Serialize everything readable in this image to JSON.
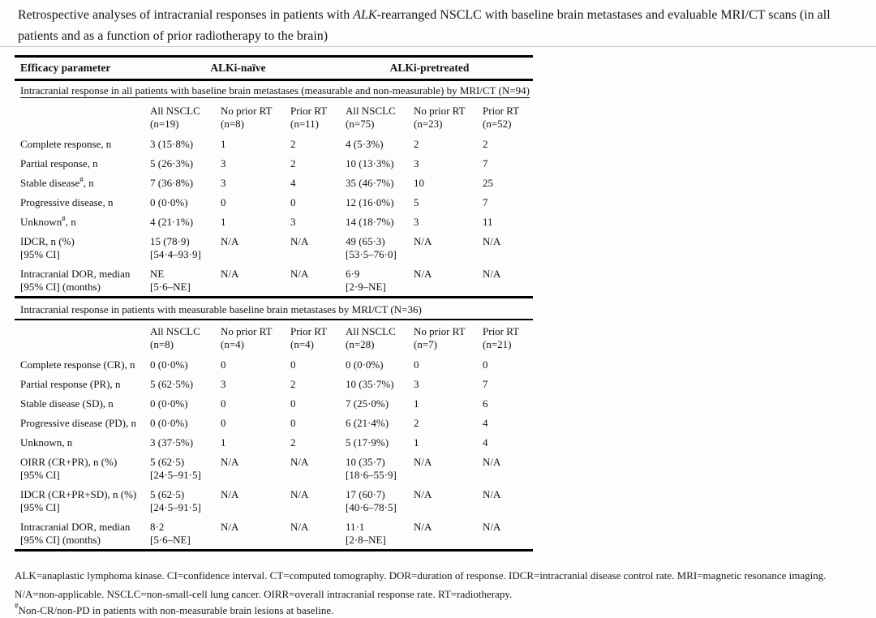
{
  "title": {
    "text_before_italic": "Retrospective analyses of intracranial responses in patients with ",
    "italic_term": "ALK",
    "text_after_italic": "-rearranged NSCLC with baseline brain metastases and evaluable MRI/CT scans (in all patients and as a function of prior radiotherapy to the brain)"
  },
  "table": {
    "header": {
      "col1": "Efficacy parameter",
      "group1": "ALKi-naïve",
      "group2": "ALKi-pretreated"
    },
    "sections": [
      {
        "heading": "Intracranial response in all patients with baseline brain metastases (measurable and non-measurable) by MRI/CT (N=94)",
        "subcolumns": [
          "All NSCLC\n(n=19)",
          "No prior RT\n(n=8)",
          "Prior RT\n(n=11)",
          "All NSCLC\n(n=75)",
          "No prior RT\n(n=23)",
          "Prior RT\n(n=52)"
        ],
        "rows": [
          {
            "label": "Complete response, n",
            "values": [
              "3 (15·8%)",
              "1",
              "2",
              "4 (5·3%)",
              "2",
              "2"
            ]
          },
          {
            "label": "Partial response, n",
            "values": [
              "5 (26·3%)",
              "3",
              "2",
              "10 (13·3%)",
              "3",
              "7"
            ]
          },
          {
            "label": "Stable disease",
            "sup": "#",
            "label_after": ", n",
            "values": [
              "7 (36·8%)",
              "3",
              "4",
              "35 (46·7%)",
              "10",
              "25"
            ]
          },
          {
            "label": "Progressive disease, n",
            "values": [
              "0 (0·0%)",
              "0",
              "0",
              "12 (16·0%)",
              "5",
              "7"
            ]
          },
          {
            "label": "Unknown",
            "sup": "#",
            "label_after": ", n",
            "values": [
              "4 (21·1%)",
              "1",
              "3",
              "14 (18·7%)",
              "3",
              "11"
            ]
          },
          {
            "label": "IDCR, n (%)\n[95% CI]",
            "values": [
              "15 (78·9)\n[54·4–93·9]",
              "N/A",
              "N/A",
              "49 (65·3)\n[53·5–76·0]",
              "N/A",
              "N/A"
            ]
          },
          {
            "label": "Intracranial DOR, median\n[95% CI] (months)",
            "values": [
              "NE\n[5·6–NE]",
              "N/A",
              "N/A",
              "6·9\n[2·9–NE]",
              "N/A",
              "N/A"
            ]
          }
        ]
      },
      {
        "heading": "Intracranial response in patients with measurable baseline brain metastases by MRI/CT (N=36)",
        "subcolumns": [
          "All NSCLC\n(n=8)",
          "No prior RT\n(n=4)",
          "Prior RT\n(n=4)",
          "All NSCLC\n(n=28)",
          "No prior RT\n(n=7)",
          "Prior RT\n(n=21)"
        ],
        "rows": [
          {
            "label": "Complete response (CR), n",
            "values": [
              "0 (0·0%)",
              "0",
              "0",
              "0 (0·0%)",
              "0",
              "0"
            ]
          },
          {
            "label": "Partial response (PR), n",
            "values": [
              "5 (62·5%)",
              "3",
              "2",
              "10 (35·7%)",
              "3",
              "7"
            ]
          },
          {
            "label": "Stable disease (SD), n",
            "values": [
              "0 (0·0%)",
              "0",
              "0",
              "7 (25·0%)",
              "1",
              "6"
            ]
          },
          {
            "label": "Progressive disease (PD), n",
            "values": [
              "0 (0·0%)",
              "0",
              "0",
              "6 (21·4%)",
              "2",
              "4"
            ]
          },
          {
            "label": "Unknown, n",
            "values": [
              "3 (37·5%)",
              "1",
              "2",
              "5 (17·9%)",
              "1",
              "4"
            ]
          },
          {
            "label": "OIRR (CR+PR), n (%)\n[95% CI]",
            "values": [
              "5 (62·5)\n[24·5–91·5]",
              "N/A",
              "N/A",
              "10 (35·7)\n[18·6–55·9]",
              "N/A",
              "N/A"
            ]
          },
          {
            "label": "IDCR (CR+PR+SD), n (%)\n[95% CI]",
            "values": [
              "5 (62·5)\n[24·5–91·5]",
              "N/A",
              "N/A",
              "17 (60·7)\n[40·6–78·5]",
              "N/A",
              "N/A"
            ]
          },
          {
            "label": "Intracranial DOR, median\n[95% CI] (months)",
            "values": [
              "8·2\n[5·6–NE]",
              "N/A",
              "N/A",
              "11·1\n[2·8–NE]",
              "N/A",
              "N/A"
            ]
          }
        ]
      }
    ]
  },
  "notes": {
    "abbreviations": "ALK=anaplastic lymphoma kinase. CI=confidence interval. CT=computed tomography. DOR=duration of response. IDCR=intracranial disease control rate. MRI=magnetic resonance imaging. N/A=non-applicable. NSCLC=non-small-cell lung cancer. OIRR=overall intracranial response rate. RT=radiotherapy.",
    "footnote_symbol": "#",
    "footnote_text": "Non-CR/non-PD in patients with non-measurable brain lesions at baseline."
  },
  "colors": {
    "background": "#fdfdfd",
    "text": "#141414",
    "rule": "#000000"
  }
}
